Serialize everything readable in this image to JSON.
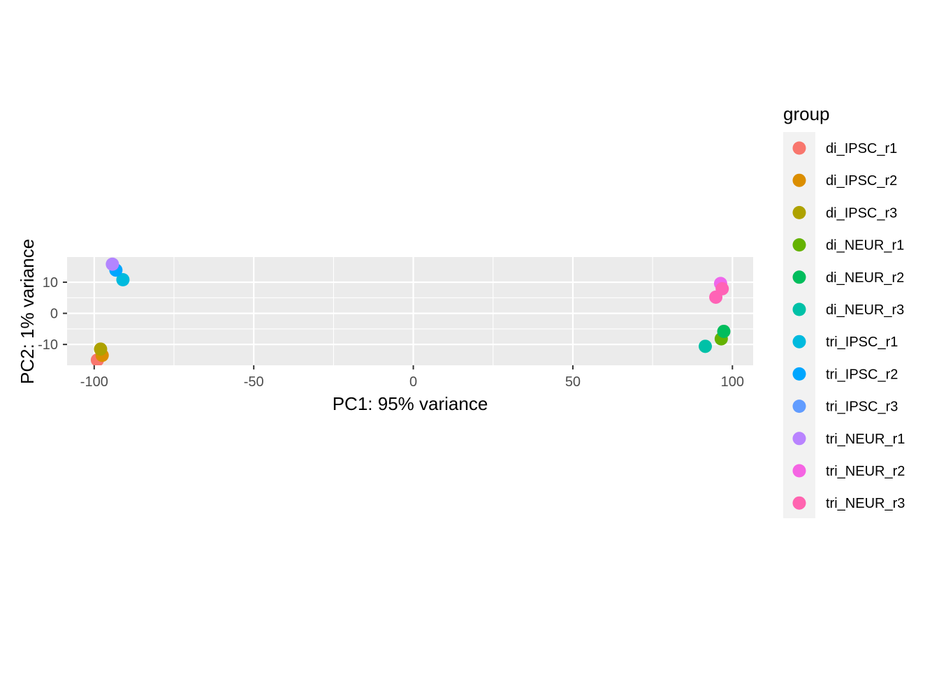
{
  "chart_data": {
    "type": "scatter",
    "xlabel": "PC1: 95% variance",
    "ylabel": "PC2: 1% variance",
    "xlim": [
      -108.5,
      106.5
    ],
    "ylim": [
      -16.7,
      18.1
    ],
    "x_ticks": [
      -100,
      -50,
      0,
      50,
      100
    ],
    "x_tick_labels": [
      "-100",
      "-50",
      "0",
      "50",
      "100"
    ],
    "y_ticks": [
      -10,
      0,
      10
    ],
    "y_tick_labels": [
      "-10",
      "0",
      "10"
    ],
    "grid": true,
    "legend": {
      "title": "group",
      "placement": "right"
    },
    "series": [
      {
        "name": "di_IPSC_r1",
        "color": "#F8766D",
        "points": [
          {
            "x": -99.0,
            "y": -15.0
          }
        ]
      },
      {
        "name": "di_IPSC_r2",
        "color": "#DB8E00",
        "points": [
          {
            "x": -97.5,
            "y": -13.5
          }
        ]
      },
      {
        "name": "di_IPSC_r3",
        "color": "#AEA200",
        "points": [
          {
            "x": -98.0,
            "y": -11.5
          }
        ]
      },
      {
        "name": "di_NEUR_r1",
        "color": "#64B200",
        "points": [
          {
            "x": 96.5,
            "y": -8.2
          }
        ]
      },
      {
        "name": "di_NEUR_r2",
        "color": "#00BD5C",
        "points": [
          {
            "x": 97.3,
            "y": -5.8
          }
        ]
      },
      {
        "name": "di_NEUR_r3",
        "color": "#00C1A7",
        "points": [
          {
            "x": 91.5,
            "y": -10.6
          }
        ]
      },
      {
        "name": "tri_IPSC_r1",
        "color": "#00BADE",
        "points": [
          {
            "x": -91.0,
            "y": 10.8
          }
        ]
      },
      {
        "name": "tri_IPSC_r2",
        "color": "#00A6FF",
        "points": [
          {
            "x": -93.2,
            "y": 13.9
          }
        ]
      },
      {
        "name": "tri_IPSC_r3",
        "color": "#B385FF",
        "points": [
          {
            "x": -94.3,
            "y": 15.8
          }
        ]
      },
      {
        "name": "tri_NEUR_r1",
        "color": "#EF67EB",
        "points": [
          {
            "x": 96.3,
            "y": 9.6
          }
        ]
      },
      {
        "name": "tri_NEUR_r2",
        "color": "#FF63B6",
        "points": [
          {
            "x": 94.8,
            "y": 5.2
          }
        ]
      },
      {
        "name": "tri_NEUR_r3",
        "color": "#FF63B6",
        "points": [
          {
            "x": 96.8,
            "y": 7.9
          }
        ]
      }
    ],
    "legend_colors": [
      "#F8766D",
      "#DB8E00",
      "#AEA200",
      "#64B200",
      "#00BD5C",
      "#00C1A7",
      "#00BADE",
      "#00A6FF",
      "#619CFF",
      "#B983FF",
      "#F564E3",
      "#FF64B0"
    ],
    "panel_background": "#EBEBEB",
    "gridline_color": "#FFFFFF"
  }
}
